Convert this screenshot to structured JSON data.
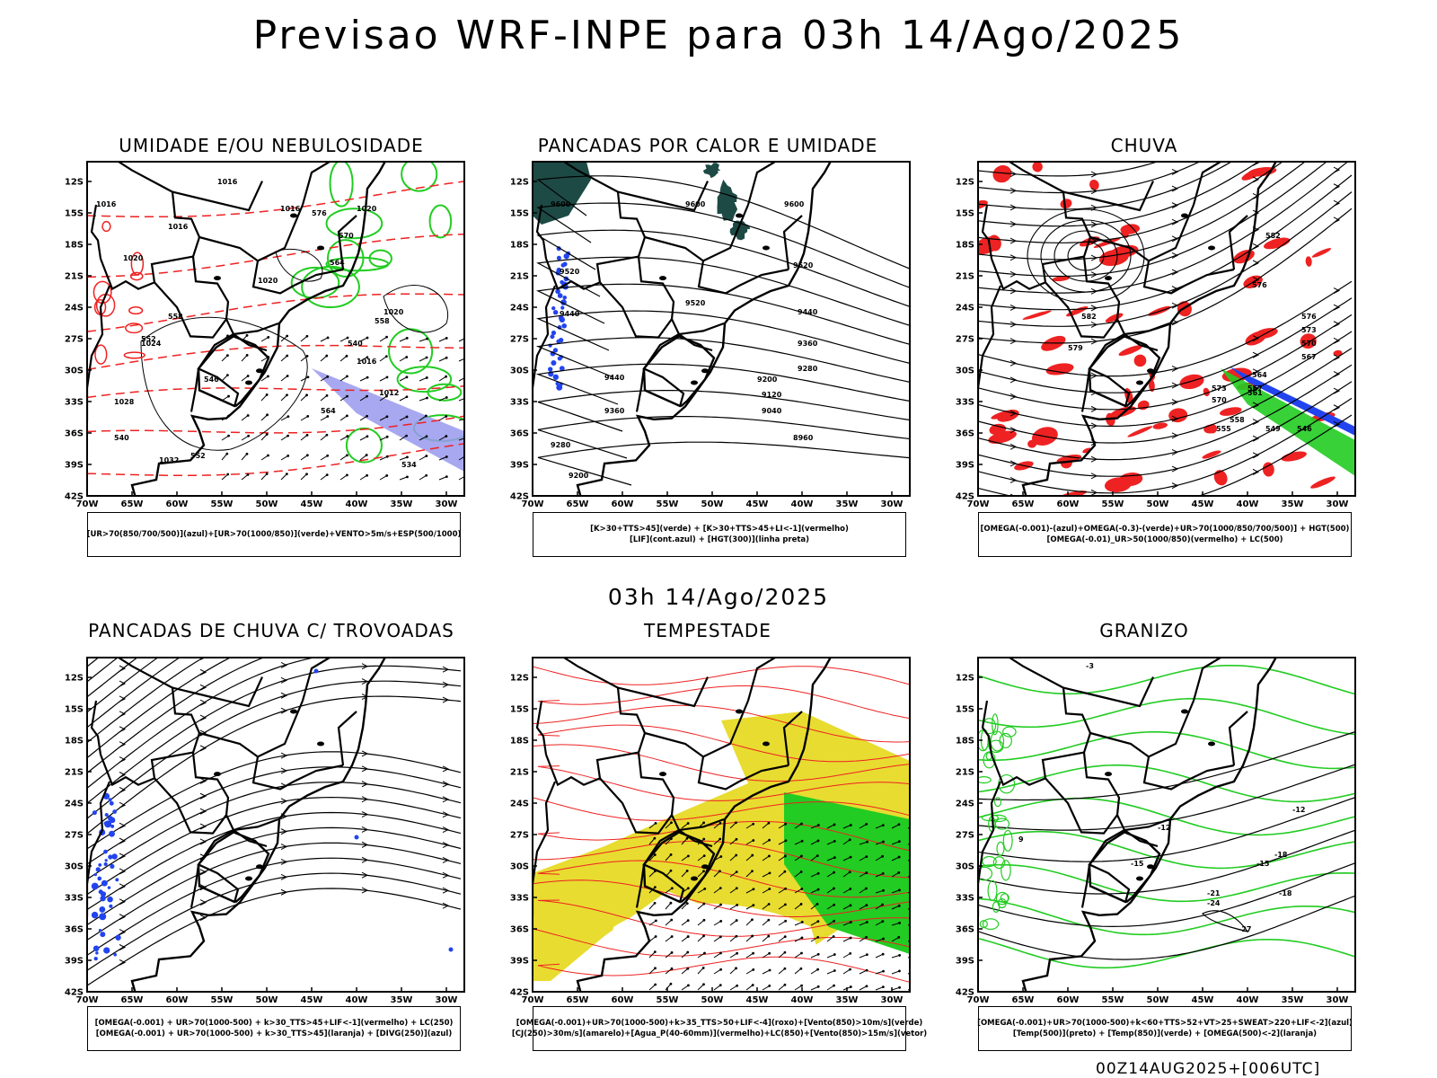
{
  "title": "Previsao WRF-INPE  para 03h 14/Ago/2025",
  "subtitle": "03h 14/Ago/2025",
  "footer": "00Z14AUG2025+[006UTC]",
  "lat_ticks": [
    "12S",
    "15S",
    "18S",
    "21S",
    "24S",
    "27S",
    "30S",
    "33S",
    "36S",
    "39S",
    "42S"
  ],
  "lon_ticks": [
    "70W",
    "65W",
    "60W",
    "55W",
    "50W",
    "45W",
    "40W",
    "35W",
    "30W"
  ],
  "colors": {
    "green": "#22cc22",
    "red": "#ee2222",
    "blue": "#2244ee",
    "purple": "#9999ee",
    "yellow": "#e8dc30",
    "darkteal": "#1d4a45",
    "black": "#000000"
  },
  "panels": [
    {
      "id": "umidade",
      "title": "UMIDADE E/OU NEBULOSIDADE",
      "legend": [
        "[UR>70(850/700/500)](azul)+[UR>70(1000/850)](verde)+VENTO>5m/s+ESP(500/1000)"
      ],
      "contour_labels": [
        "1016",
        "1016",
        "1016",
        "1016",
        "1020",
        "1020",
        "1020",
        "1024",
        "1028",
        "1032",
        "1016",
        "1012",
        "1020",
        "576",
        "570",
        "564",
        "558",
        "552",
        "546",
        "540",
        "564",
        "558",
        "552",
        "534",
        "540"
      ]
    },
    {
      "id": "pancadas_calor",
      "title": "PANCADAS POR CALOR E UMIDADE",
      "legend": [
        "[K>30+TTS>45](verde) + [K>30+TTS>45+LI<-1](vermelho)",
        "[LIF](cont.azul) + [HGT(300)](linha preta)"
      ],
      "contour_labels": [
        "9600",
        "9600",
        "9600",
        "9520",
        "9520",
        "9520",
        "9440",
        "9440",
        "9440",
        "9360",
        "9360",
        "9280",
        "9280",
        "9200",
        "9200",
        "9120",
        "9040",
        "8960"
      ]
    },
    {
      "id": "chuva",
      "title": "CHUVA",
      "legend": [
        "[OMEGA(-0.001)-(azul)+OMEGA(-0.3)-(verde)+UR>70(1000/850/700/500)] + HGT(500)",
        "[OMEGA(-0.01)_UR>50(1000/850)(vermelho) + LC(500)"
      ],
      "contour_labels": [
        "582",
        "582",
        "579",
        "576",
        "573",
        "570",
        "567",
        "576",
        "573",
        "570",
        "567",
        "564",
        "561",
        "558",
        "555",
        "549",
        "546"
      ]
    },
    {
      "id": "trovoadas",
      "title": "PANCADAS DE CHUVA C/ TROVOADAS",
      "legend": [
        "[OMEGA(-0.001) + UR>70(1000-500) + k>30_TTS>45+LIF<-1](vermelho) + LC(250)",
        "[OMEGA(-0.001) + UR>70(1000-500) + k>30_TTS>45](laranja) + [DIVG(250)](azul)"
      ],
      "contour_labels": []
    },
    {
      "id": "tempestade",
      "title": "TEMPESTADE",
      "legend": [
        "[OMEGA(-0.001)+UR>70(1000-500)+k>35_TTS>50+LIF<-4](roxo)+[Vento(850)>10m/s](verde)",
        "[CJ(250)>30m/s](amarelo)+[Agua_P(40-60mm)](vermelho)+LC(850)+[Vento(850)>15m/s](vetor)"
      ],
      "contour_labels": []
    },
    {
      "id": "granizo",
      "title": "GRANIZO",
      "legend": [
        "[OMEGA(-0.001)+UR>70(1000-500)+k<60+TTS>52+VT>25+SWEAT>220+LIF<-2](azul)",
        "[Temp(500)](preto) + [Temp(850)](verde) + [OMEGA(500)<-2](laranja)"
      ],
      "contour_labels": [
        "-12",
        "-12",
        "-15",
        "-15",
        "-18",
        "-18",
        "-21",
        "-24",
        "-27",
        "9",
        "-3"
      ]
    }
  ]
}
